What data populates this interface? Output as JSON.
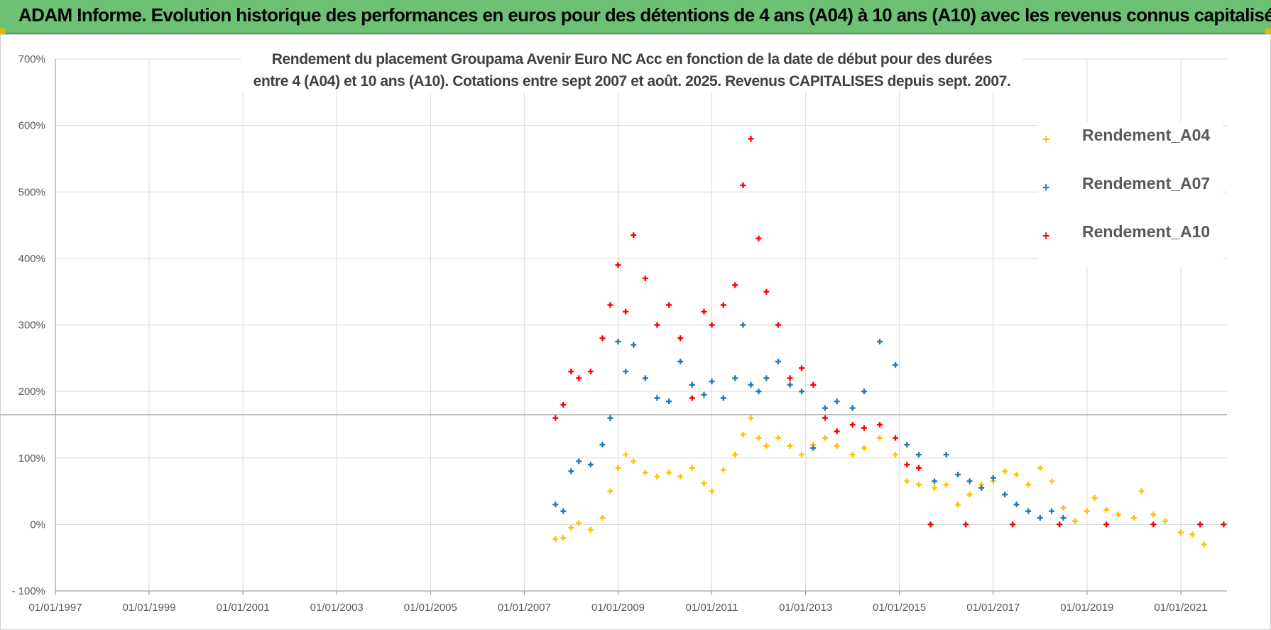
{
  "header": {
    "title": "ADAM Informe. Evolution historique des performances en euros pour des détentions de 4 ans (A04) à 10 ans (A10) avec les revenus connus capitalisés"
  },
  "colors": {
    "banner": "#6cc175",
    "A04": "#ffc000",
    "A07": "#1f78b4",
    "A10": "#ff0000",
    "grid": "#d9d9d9",
    "axis_text": "#595959"
  },
  "chart_data": {
    "type": "scatter",
    "title_lines": [
      "Rendement du placement Groupama Avenir Euro NC Acc en fonction de la date de début pour des durées",
      "entre 4 (A04) et 10 ans (A10).  Cotations entre sept 2007 et août. 2025.  Revenus CAPITALISES depuis sept. 2007."
    ],
    "x_axis": {
      "type": "date",
      "range": [
        "1997-01-01",
        "2021-12-31"
      ],
      "tick_labels": [
        "01/01/1997",
        "01/01/1999",
        "01/01/2001",
        "01/01/2003",
        "01/01/2005",
        "01/01/2007",
        "01/01/2009",
        "01/01/2011",
        "01/01/2013",
        "01/01/2015",
        "01/01/2017",
        "01/01/2019",
        "01/01/2021"
      ],
      "tick_dates": [
        "1997-01-01",
        "1999-01-01",
        "2001-01-01",
        "2003-01-01",
        "2005-01-01",
        "2007-01-01",
        "2009-01-01",
        "2011-01-01",
        "2013-01-01",
        "2015-01-01",
        "2017-01-01",
        "2019-01-01",
        "2021-01-01"
      ]
    },
    "y_axis": {
      "range": [
        -1,
        7
      ],
      "ticks": [
        -1,
        0,
        1,
        2,
        3,
        4,
        5,
        6,
        7
      ],
      "tick_labels": [
        "- 100%",
        "0%",
        "100%",
        "200%",
        "300%",
        "400%",
        "500%",
        "600%",
        "700%"
      ]
    },
    "grid": true,
    "reference_line_y": 1.65,
    "legend": {
      "position": "top-right",
      "entries": [
        "Rendement_A04",
        "Rendement_A07",
        "Rendement_A10"
      ]
    },
    "series": [
      {
        "name": "Rendement_A04",
        "color": "#ffc000",
        "points": [
          [
            "2007-09-01",
            -0.22
          ],
          [
            "2007-11-01",
            -0.2
          ],
          [
            "2008-01-01",
            -0.05
          ],
          [
            "2008-03-01",
            0.02
          ],
          [
            "2008-06-01",
            -0.08
          ],
          [
            "2008-09-01",
            0.1
          ],
          [
            "2008-11-01",
            0.5
          ],
          [
            "2009-01-01",
            0.85
          ],
          [
            "2009-03-01",
            1.05
          ],
          [
            "2009-05-01",
            0.95
          ],
          [
            "2009-08-01",
            0.78
          ],
          [
            "2009-11-01",
            0.72
          ],
          [
            "2010-02-01",
            0.78
          ],
          [
            "2010-05-01",
            0.72
          ],
          [
            "2010-08-01",
            0.85
          ],
          [
            "2010-11-01",
            0.62
          ],
          [
            "2011-01-01",
            0.5
          ],
          [
            "2011-04-01",
            0.82
          ],
          [
            "2011-07-01",
            1.05
          ],
          [
            "2011-09-01",
            1.35
          ],
          [
            "2011-11-01",
            1.6
          ],
          [
            "2012-01-01",
            1.3
          ],
          [
            "2012-03-01",
            1.18
          ],
          [
            "2012-06-01",
            1.3
          ],
          [
            "2012-09-01",
            1.18
          ],
          [
            "2012-12-01",
            1.05
          ],
          [
            "2013-03-01",
            1.2
          ],
          [
            "2013-06-01",
            1.3
          ],
          [
            "2013-09-01",
            1.18
          ],
          [
            "2014-01-01",
            1.05
          ],
          [
            "2014-04-01",
            1.15
          ],
          [
            "2014-08-01",
            1.3
          ],
          [
            "2014-12-01",
            1.05
          ],
          [
            "2015-03-01",
            0.65
          ],
          [
            "2015-06-01",
            0.6
          ],
          [
            "2015-10-01",
            0.55
          ],
          [
            "2016-01-01",
            0.6
          ],
          [
            "2016-04-01",
            0.3
          ],
          [
            "2016-07-01",
            0.45
          ],
          [
            "2016-10-01",
            0.6
          ],
          [
            "2017-01-01",
            0.65
          ],
          [
            "2017-04-01",
            0.8
          ],
          [
            "2017-07-01",
            0.75
          ],
          [
            "2017-10-01",
            0.6
          ],
          [
            "2018-01-01",
            0.85
          ],
          [
            "2018-04-01",
            0.65
          ],
          [
            "2018-07-01",
            0.25
          ],
          [
            "2018-10-01",
            0.05
          ],
          [
            "2019-01-01",
            0.2
          ],
          [
            "2019-03-01",
            0.4
          ],
          [
            "2019-06-01",
            0.22
          ],
          [
            "2019-09-01",
            0.15
          ],
          [
            "2020-01-01",
            0.1
          ],
          [
            "2020-03-01",
            0.5
          ],
          [
            "2020-06-01",
            0.15
          ],
          [
            "2020-09-01",
            0.05
          ],
          [
            "2021-01-01",
            -0.12
          ],
          [
            "2021-04-01",
            -0.15
          ],
          [
            "2021-07-01",
            -0.3
          ]
        ]
      },
      {
        "name": "Rendement_A07",
        "color": "#1f78b4",
        "points": [
          [
            "2007-09-01",
            0.3
          ],
          [
            "2007-11-01",
            0.2
          ],
          [
            "2008-01-01",
            0.8
          ],
          [
            "2008-03-01",
            0.95
          ],
          [
            "2008-06-01",
            0.9
          ],
          [
            "2008-09-01",
            1.2
          ],
          [
            "2008-11-01",
            1.6
          ],
          [
            "2009-01-01",
            2.75
          ],
          [
            "2009-03-01",
            2.3
          ],
          [
            "2009-05-01",
            2.7
          ],
          [
            "2009-08-01",
            2.2
          ],
          [
            "2009-11-01",
            1.9
          ],
          [
            "2010-02-01",
            1.85
          ],
          [
            "2010-05-01",
            2.45
          ],
          [
            "2010-08-01",
            2.1
          ],
          [
            "2010-11-01",
            1.95
          ],
          [
            "2011-01-01",
            2.15
          ],
          [
            "2011-04-01",
            1.9
          ],
          [
            "2011-07-01",
            2.2
          ],
          [
            "2011-09-01",
            3.0
          ],
          [
            "2011-11-01",
            2.1
          ],
          [
            "2012-01-01",
            2.0
          ],
          [
            "2012-03-01",
            2.2
          ],
          [
            "2012-06-01",
            2.45
          ],
          [
            "2012-09-01",
            2.1
          ],
          [
            "2012-12-01",
            2.0
          ],
          [
            "2013-03-01",
            1.15
          ],
          [
            "2013-06-01",
            1.75
          ],
          [
            "2013-09-01",
            1.85
          ],
          [
            "2014-01-01",
            1.75
          ],
          [
            "2014-04-01",
            2.0
          ],
          [
            "2014-08-01",
            2.75
          ],
          [
            "2014-12-01",
            2.4
          ],
          [
            "2015-03-01",
            1.2
          ],
          [
            "2015-06-01",
            1.05
          ],
          [
            "2015-10-01",
            0.65
          ],
          [
            "2016-01-01",
            1.05
          ],
          [
            "2016-04-01",
            0.75
          ],
          [
            "2016-07-01",
            0.65
          ],
          [
            "2016-10-01",
            0.55
          ],
          [
            "2017-01-01",
            0.7
          ],
          [
            "2017-04-01",
            0.45
          ],
          [
            "2017-07-01",
            0.3
          ],
          [
            "2017-10-01",
            0.2
          ],
          [
            "2018-01-01",
            0.1
          ],
          [
            "2018-04-01",
            0.2
          ],
          [
            "2018-07-01",
            0.1
          ]
        ]
      },
      {
        "name": "Rendement_A10",
        "color": "#ff0000",
        "points": [
          [
            "2007-09-01",
            1.6
          ],
          [
            "2007-11-01",
            1.8
          ],
          [
            "2008-01-01",
            2.3
          ],
          [
            "2008-03-01",
            2.2
          ],
          [
            "2008-06-01",
            2.3
          ],
          [
            "2008-09-01",
            2.8
          ],
          [
            "2008-11-01",
            3.3
          ],
          [
            "2009-01-01",
            3.9
          ],
          [
            "2009-03-01",
            3.2
          ],
          [
            "2009-05-01",
            4.35
          ],
          [
            "2009-08-01",
            3.7
          ],
          [
            "2009-11-01",
            3.0
          ],
          [
            "2010-02-01",
            3.3
          ],
          [
            "2010-05-01",
            2.8
          ],
          [
            "2010-08-01",
            1.9
          ],
          [
            "2010-11-01",
            3.2
          ],
          [
            "2011-01-01",
            3.0
          ],
          [
            "2011-04-01",
            3.3
          ],
          [
            "2011-07-01",
            3.6
          ],
          [
            "2011-09-01",
            5.1
          ],
          [
            "2011-11-01",
            5.8
          ],
          [
            "2012-01-01",
            4.3
          ],
          [
            "2012-03-01",
            3.5
          ],
          [
            "2012-06-01",
            3.0
          ],
          [
            "2012-09-01",
            2.2
          ],
          [
            "2012-12-01",
            2.35
          ],
          [
            "2013-03-01",
            2.1
          ],
          [
            "2013-06-01",
            1.6
          ],
          [
            "2013-09-01",
            1.4
          ],
          [
            "2014-01-01",
            1.5
          ],
          [
            "2014-04-01",
            1.45
          ],
          [
            "2014-08-01",
            1.5
          ],
          [
            "2014-12-01",
            1.3
          ],
          [
            "2015-03-01",
            0.9
          ],
          [
            "2015-06-01",
            0.85
          ],
          [
            "2015-09-01",
            0.0
          ],
          [
            "2016-06-01",
            0.0
          ],
          [
            "2017-06-01",
            0.0
          ],
          [
            "2018-06-01",
            0.0
          ],
          [
            "2019-06-01",
            0.0
          ],
          [
            "2020-06-01",
            0.0
          ],
          [
            "2021-06-01",
            0.0
          ],
          [
            "2021-12-01",
            0.0
          ]
        ]
      }
    ]
  }
}
